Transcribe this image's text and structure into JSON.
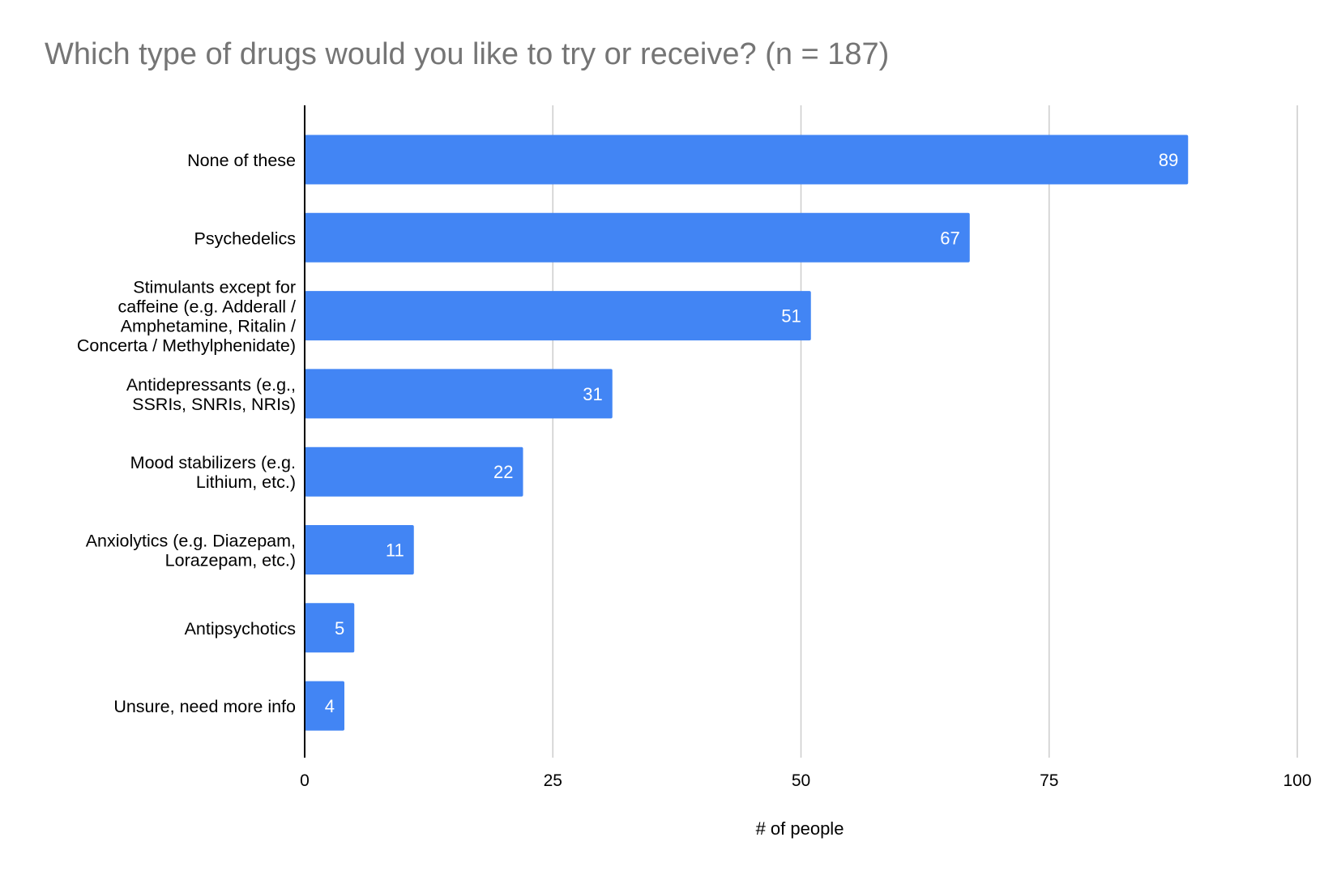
{
  "chart_data": {
    "type": "bar",
    "orientation": "horizontal",
    "title": "Which type of drugs would you like to try or receive? (n = 187)",
    "xlabel": "# of people",
    "ylabel": "",
    "categories": [
      [
        "None of these"
      ],
      [
        "Psychedelics"
      ],
      [
        "Stimulants except for",
        "caffeine (e.g. Adderall /",
        "Amphetamine, Ritalin /",
        "Concerta / Methylphenidate)"
      ],
      [
        "Antidepressants (e.g.,",
        "SSRIs, SNRIs, NRIs)"
      ],
      [
        "Mood stabilizers (e.g.",
        "Lithium, etc.)"
      ],
      [
        "Anxiolytics (e.g. Diazepam,",
        "Lorazepam, etc.)"
      ],
      [
        "Antipsychotics"
      ],
      [
        "Unsure, need more info"
      ]
    ],
    "values": [
      89,
      67,
      51,
      31,
      22,
      11,
      5,
      4
    ],
    "xlim": [
      0,
      100
    ],
    "xticks": [
      "0",
      "25",
      "50",
      "75",
      "100"
    ],
    "grid": "vertical",
    "legend": "none",
    "bar_color": "#4285f4",
    "data_label_color": "#ffffff",
    "gridline_color": "#cccccc",
    "axis_color": "#000000",
    "title_color": "#757575"
  }
}
